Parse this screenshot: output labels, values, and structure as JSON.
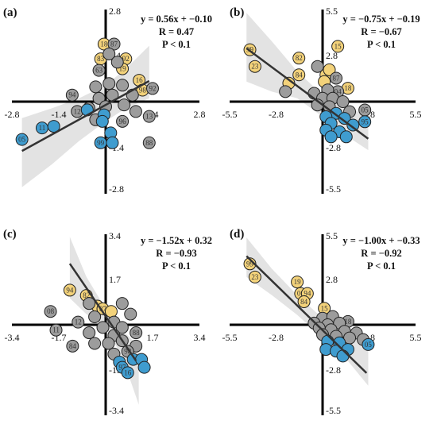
{
  "colors": {
    "gray": "#9c9c9c",
    "yellow": "#f3d27a",
    "blue": "#3f9ccf",
    "band": "#d9d9d9",
    "line": "#333333"
  },
  "chart_data": [
    {
      "type": "scatter",
      "panel": "(a)",
      "xlim": [
        -2.8,
        2.8
      ],
      "ylim": [
        -2.8,
        2.8
      ],
      "xticks": [
        "-2.8",
        "-1.4",
        "1.4",
        "2.8"
      ],
      "yticks": [
        "2.8",
        "1.4",
        "-1.4",
        "-2.8"
      ],
      "annotation": [
        "y = 0.56x + −0.10",
        "R = 0.47",
        "P < 0.1"
      ],
      "fit": {
        "slope": 0.56,
        "intercept": -0.1,
        "x_range": [
          -2.5,
          1.3
        ]
      },
      "band": {
        "x": [
          -2.5,
          -1.6,
          -0.8,
          0,
          0.6,
          1.3
        ],
        "upper": [
          -0.5,
          -0.2,
          0.1,
          0.5,
          1.0,
          1.7
        ],
        "lower": [
          -2.6,
          -1.9,
          -1.2,
          -0.6,
          -0.2,
          0.1
        ]
      },
      "points": [
        {
          "label": "18",
          "x": -0.05,
          "y": 1.75,
          "group": "yellow"
        },
        {
          "label": "87",
          "x": 0.25,
          "y": 1.75,
          "group": "gray"
        },
        {
          "label": "83",
          "x": -0.15,
          "y": 1.3,
          "group": "yellow"
        },
        {
          "label": "92",
          "x": 0.6,
          "y": 1.3,
          "group": "yellow"
        },
        {
          "label": "19",
          "x": 0.5,
          "y": 1.0,
          "group": "yellow"
        },
        {
          "label": "",
          "x": 0.1,
          "y": 1.45,
          "group": "gray"
        },
        {
          "label": "",
          "x": 0.35,
          "y": 1.2,
          "group": "gray"
        },
        {
          "label": "63",
          "x": -0.2,
          "y": 0.95,
          "group": "gray"
        },
        {
          "label": "16",
          "x": 1.0,
          "y": 0.65,
          "group": "yellow"
        },
        {
          "label": "98",
          "x": 1.1,
          "y": 0.35,
          "group": "yellow"
        },
        {
          "label": "92",
          "x": 1.4,
          "y": 0.4,
          "group": "gray"
        },
        {
          "label": "94",
          "x": -1.0,
          "y": 0.2,
          "group": "gray"
        },
        {
          "label": "",
          "x": -0.3,
          "y": 0.45,
          "group": "gray"
        },
        {
          "label": "",
          "x": 0.1,
          "y": 0.55,
          "group": "gray"
        },
        {
          "label": "",
          "x": 0.5,
          "y": 0.5,
          "group": "gray"
        },
        {
          "label": "",
          "x": 0.8,
          "y": 0.2,
          "group": "gray"
        },
        {
          "label": "",
          "x": 0.2,
          "y": 0.2,
          "group": "gray"
        },
        {
          "label": "",
          "x": -0.2,
          "y": 0.1,
          "group": "gray"
        },
        {
          "label": "",
          "x": 0.55,
          "y": -0.1,
          "group": "gray"
        },
        {
          "label": "",
          "x": 0.0,
          "y": -0.15,
          "group": "gray"
        },
        {
          "label": "",
          "x": -0.5,
          "y": -0.2,
          "group": "gray"
        },
        {
          "label": "",
          "x": 0.9,
          "y": -0.3,
          "group": "gray"
        },
        {
          "label": "12",
          "x": -0.85,
          "y": -0.3,
          "group": "gray"
        },
        {
          "label": "",
          "x": -0.3,
          "y": -0.55,
          "group": "gray"
        },
        {
          "label": "96",
          "x": 0.5,
          "y": -0.6,
          "group": "gray"
        },
        {
          "label": "13",
          "x": 1.3,
          "y": -0.45,
          "group": "gray"
        },
        {
          "label": "",
          "x": -0.55,
          "y": -0.25,
          "group": "blue"
        },
        {
          "label": "",
          "x": -0.05,
          "y": -0.4,
          "group": "blue"
        },
        {
          "label": "",
          "x": -0.1,
          "y": -0.6,
          "group": "blue"
        },
        {
          "label": "11",
          "x": -1.9,
          "y": -0.8,
          "group": "blue"
        },
        {
          "label": "",
          "x": -1.55,
          "y": -0.75,
          "group": "blue"
        },
        {
          "label": "05",
          "x": -2.5,
          "y": -1.15,
          "group": "blue"
        },
        {
          "label": "",
          "x": 0.15,
          "y": -0.95,
          "group": "blue"
        },
        {
          "label": "99",
          "x": -0.15,
          "y": -1.25,
          "group": "blue"
        },
        {
          "label": "",
          "x": 0.2,
          "y": -1.25,
          "group": "blue"
        },
        {
          "label": "88",
          "x": 1.3,
          "y": -1.25,
          "group": "gray"
        }
      ]
    },
    {
      "type": "scatter",
      "panel": "(b)",
      "xlim": [
        -5.5,
        5.5
      ],
      "ylim": [
        -5.5,
        5.5
      ],
      "xticks": [
        "-5.5",
        "-2.8",
        "2.8",
        "5.5"
      ],
      "yticks": [
        "5.5",
        "2.8",
        "-2.8",
        "-5.5"
      ],
      "annotation": [
        "y = −0.75x + −0.19",
        "R = −0.67",
        "P < 0.1"
      ],
      "fit": {
        "slope": -0.75,
        "intercept": -0.19,
        "x_range": [
          -4.5,
          2.7
        ]
      },
      "band": {
        "x": [
          -4.5,
          -3,
          -1.5,
          0,
          1.5,
          2.7
        ],
        "upper": [
          5.3,
          3.6,
          1.8,
          0.4,
          -0.4,
          -0.8
        ],
        "lower": [
          1.2,
          0.6,
          0.2,
          -0.9,
          -2.1,
          -2.9
        ]
      },
      "points": [
        {
          "label": "99",
          "x": -4.3,
          "y": 3.1,
          "group": "yellow"
        },
        {
          "label": "23",
          "x": -4.0,
          "y": 2.1,
          "group": "yellow"
        },
        {
          "label": "15",
          "x": 0.9,
          "y": 3.3,
          "group": "yellow"
        },
        {
          "label": "82",
          "x": -1.4,
          "y": 2.6,
          "group": "yellow"
        },
        {
          "label": "",
          "x": -0.3,
          "y": 2.1,
          "group": "gray"
        },
        {
          "label": "84",
          "x": -1.4,
          "y": 1.6,
          "group": "yellow"
        },
        {
          "label": "",
          "x": 0.2,
          "y": 1.6,
          "group": "yellow"
        },
        {
          "label": "",
          "x": 0.4,
          "y": 1.9,
          "group": "yellow"
        },
        {
          "label": "",
          "x": 0.1,
          "y": 1.2,
          "group": "yellow"
        },
        {
          "label": "87",
          "x": 0.8,
          "y": 1.4,
          "group": "gray"
        },
        {
          "label": "",
          "x": -2.0,
          "y": 1.1,
          "group": "yellow"
        },
        {
          "label": "",
          "x": -2.2,
          "y": 0.6,
          "group": "gray"
        },
        {
          "label": "18",
          "x": 1.5,
          "y": 0.8,
          "group": "yellow"
        },
        {
          "label": "04",
          "x": 0.9,
          "y": 0.6,
          "group": "gray"
        },
        {
          "label": "",
          "x": 0.3,
          "y": 0.7,
          "group": "gray"
        },
        {
          "label": "",
          "x": -0.5,
          "y": 0.5,
          "group": "gray"
        },
        {
          "label": "",
          "x": 0.0,
          "y": 0.2,
          "group": "gray"
        },
        {
          "label": "",
          "x": 0.6,
          "y": 0.2,
          "group": "gray"
        },
        {
          "label": "",
          "x": 1.2,
          "y": 0.0,
          "group": "gray"
        },
        {
          "label": "",
          "x": -0.3,
          "y": -0.2,
          "group": "gray"
        },
        {
          "label": "",
          "x": 0.4,
          "y": -0.3,
          "group": "gray"
        },
        {
          "label": "05",
          "x": 2.5,
          "y": -0.5,
          "group": "gray"
        },
        {
          "label": "",
          "x": 1.6,
          "y": -0.6,
          "group": "gray"
        },
        {
          "label": "",
          "x": 0.8,
          "y": -0.7,
          "group": "blue"
        },
        {
          "label": "",
          "x": 0.2,
          "y": -0.9,
          "group": "blue"
        },
        {
          "label": "",
          "x": 1.3,
          "y": -1.0,
          "group": "blue"
        },
        {
          "label": "95",
          "x": 2.5,
          "y": -1.2,
          "group": "blue"
        },
        {
          "label": "",
          "x": 0.5,
          "y": -1.3,
          "group": "blue"
        },
        {
          "label": "",
          "x": 1.8,
          "y": -1.4,
          "group": "blue"
        },
        {
          "label": "",
          "x": 0.2,
          "y": -1.7,
          "group": "blue"
        },
        {
          "label": "",
          "x": 1.0,
          "y": -1.8,
          "group": "blue"
        },
        {
          "label": "",
          "x": 0.5,
          "y": -2.1,
          "group": "blue"
        },
        {
          "label": "",
          "x": 1.4,
          "y": -2.1,
          "group": "blue"
        }
      ]
    },
    {
      "type": "scatter",
      "panel": "(c)",
      "xlim": [
        -3.4,
        3.4
      ],
      "ylim": [
        -3.4,
        3.4
      ],
      "xticks": [
        "-3.4",
        "-1.7",
        "1.7",
        "3.4"
      ],
      "yticks": [
        "3.4",
        "1.7",
        "-1.7",
        "-3.4"
      ],
      "annotation": [
        "y = −1.52x + 0.32",
        "R = −0.93",
        "P < 0.1"
      ],
      "fit": {
        "slope": -1.52,
        "intercept": 0.32,
        "x_range": [
          -1.3,
          1.1
        ]
      },
      "band": {
        "x": [
          -1.3,
          -0.7,
          0,
          0.6,
          1.2
        ],
        "upper": [
          3.3,
          1.8,
          0.6,
          -0.2,
          -0.8
        ],
        "lower": [
          1.0,
          0.4,
          -0.1,
          -1.2,
          -3.0
        ]
      },
      "points": [
        {
          "label": "94",
          "x": -1.3,
          "y": 1.3,
          "group": "yellow"
        },
        {
          "label": "82",
          "x": -0.7,
          "y": 1.1,
          "group": "yellow"
        },
        {
          "label": "",
          "x": -0.3,
          "y": 0.7,
          "group": "yellow"
        },
        {
          "label": "87",
          "x": -0.1,
          "y": 0.6,
          "group": "yellow"
        },
        {
          "label": "",
          "x": 0.2,
          "y": 0.5,
          "group": "yellow"
        },
        {
          "label": "",
          "x": -0.6,
          "y": 0.8,
          "group": "gray"
        },
        {
          "label": "",
          "x": 0.6,
          "y": 0.8,
          "group": "gray"
        },
        {
          "label": "",
          "x": 0.9,
          "y": 0.4,
          "group": "gray"
        },
        {
          "label": "08",
          "x": -2.0,
          "y": 0.5,
          "group": "gray"
        },
        {
          "label": "",
          "x": -0.4,
          "y": 0.3,
          "group": "gray"
        },
        {
          "label": "11",
          "x": -1.8,
          "y": -0.2,
          "group": "gray"
        },
        {
          "label": "12",
          "x": -1.0,
          "y": 0.1,
          "group": "gray"
        },
        {
          "label": "",
          "x": 0.3,
          "y": 0.1,
          "group": "gray"
        },
        {
          "label": "",
          "x": -0.1,
          "y": -0.1,
          "group": "gray"
        },
        {
          "label": "",
          "x": 0.6,
          "y": -0.1,
          "group": "gray"
        },
        {
          "label": "",
          "x": -0.6,
          "y": -0.3,
          "group": "gray"
        },
        {
          "label": "88",
          "x": 1.1,
          "y": -0.3,
          "group": "gray"
        },
        {
          "label": "",
          "x": 0.3,
          "y": -0.4,
          "group": "gray"
        },
        {
          "label": "84",
          "x": -1.2,
          "y": -0.8,
          "group": "gray"
        },
        {
          "label": "",
          "x": -0.4,
          "y": -0.7,
          "group": "gray"
        },
        {
          "label": "",
          "x": 0.1,
          "y": -0.7,
          "group": "gray"
        },
        {
          "label": "",
          "x": 0.6,
          "y": -0.6,
          "group": "gray"
        },
        {
          "label": "",
          "x": 1.1,
          "y": -0.8,
          "group": "gray"
        },
        {
          "label": "98",
          "x": 0.8,
          "y": -1.0,
          "group": "gray"
        },
        {
          "label": "",
          "x": 0.3,
          "y": -1.1,
          "group": "gray"
        },
        {
          "label": "",
          "x": 1.0,
          "y": -1.3,
          "group": "blue"
        },
        {
          "label": "",
          "x": 1.3,
          "y": -1.3,
          "group": "blue"
        },
        {
          "label": "",
          "x": 0.5,
          "y": -1.4,
          "group": "blue"
        },
        {
          "label": "97",
          "x": 0.6,
          "y": -1.6,
          "group": "blue"
        },
        {
          "label": "16",
          "x": 0.8,
          "y": -1.8,
          "group": "blue"
        },
        {
          "label": "",
          "x": 1.4,
          "y": -1.6,
          "group": "blue"
        }
      ]
    },
    {
      "type": "scatter",
      "panel": "(d)",
      "xlim": [
        -5.5,
        5.5
      ],
      "ylim": [
        -5.5,
        5.5
      ],
      "xticks": [
        "-5.5",
        "-2.8",
        "2.8",
        "5.5"
      ],
      "yticks": [
        "5.5",
        "2.8",
        "-2.8",
        "-5.5"
      ],
      "annotation": [
        "y = −1.00x + −0.33",
        "R = −0.92",
        "P < 0.1"
      ],
      "fit": {
        "slope": -1.0,
        "intercept": -0.33,
        "x_range": [
          -4.5,
          2.6
        ]
      },
      "band": {
        "x": [
          -4.5,
          -3,
          -1.5,
          0,
          1.5,
          2.7
        ],
        "upper": [
          5.3,
          3.4,
          1.8,
          0.4,
          -0.6,
          -1.3
        ],
        "lower": [
          2.9,
          1.8,
          0.6,
          -0.8,
          -2.2,
          -3.7
        ]
      },
      "points": [
        {
          "label": "99",
          "x": -4.3,
          "y": 3.7,
          "group": "yellow"
        },
        {
          "label": "23",
          "x": -4.0,
          "y": 2.9,
          "group": "yellow"
        },
        {
          "label": "19",
          "x": -1.5,
          "y": 2.6,
          "group": "yellow"
        },
        {
          "label": "06",
          "x": -1.3,
          "y": 1.9,
          "group": "yellow"
        },
        {
          "label": "94",
          "x": -0.9,
          "y": 1.9,
          "group": "yellow"
        },
        {
          "label": "84",
          "x": -1.1,
          "y": 1.4,
          "group": "yellow"
        },
        {
          "label": "15",
          "x": 0.1,
          "y": 1.0,
          "group": "yellow"
        },
        {
          "label": "",
          "x": 0.0,
          "y": 0.4,
          "group": "gray"
        },
        {
          "label": "",
          "x": 0.6,
          "y": 0.5,
          "group": "gray"
        },
        {
          "label": "",
          "x": -0.5,
          "y": 0.1,
          "group": "gray"
        },
        {
          "label": "",
          "x": 0.3,
          "y": 0.0,
          "group": "gray"
        },
        {
          "label": "18",
          "x": 1.5,
          "y": 0.2,
          "group": "gray"
        },
        {
          "label": "",
          "x": 1.0,
          "y": 0.1,
          "group": "gray"
        },
        {
          "label": "",
          "x": -0.2,
          "y": -0.2,
          "group": "gray"
        },
        {
          "label": "",
          "x": 0.5,
          "y": -0.3,
          "group": "gray"
        },
        {
          "label": "",
          "x": 1.3,
          "y": -0.4,
          "group": "gray"
        },
        {
          "label": "",
          "x": 2.0,
          "y": -0.5,
          "group": "gray"
        },
        {
          "label": "",
          "x": 0.0,
          "y": -0.6,
          "group": "gray"
        },
        {
          "label": "",
          "x": 0.8,
          "y": -0.7,
          "group": "gray"
        },
        {
          "label": "",
          "x": 1.6,
          "y": -0.8,
          "group": "gray"
        },
        {
          "label": "",
          "x": 2.4,
          "y": -0.9,
          "group": "gray"
        },
        {
          "label": "",
          "x": 0.3,
          "y": -1.0,
          "group": "blue"
        },
        {
          "label": "",
          "x": 1.0,
          "y": -1.1,
          "group": "blue"
        },
        {
          "label": "05",
          "x": 2.7,
          "y": -1.2,
          "group": "blue"
        },
        {
          "label": "",
          "x": 0.2,
          "y": -1.5,
          "group": "blue"
        },
        {
          "label": "",
          "x": 0.8,
          "y": -1.6,
          "group": "blue"
        },
        {
          "label": "",
          "x": 1.5,
          "y": -1.5,
          "group": "blue"
        },
        {
          "label": "",
          "x": 1.2,
          "y": -1.9,
          "group": "blue"
        }
      ]
    }
  ]
}
